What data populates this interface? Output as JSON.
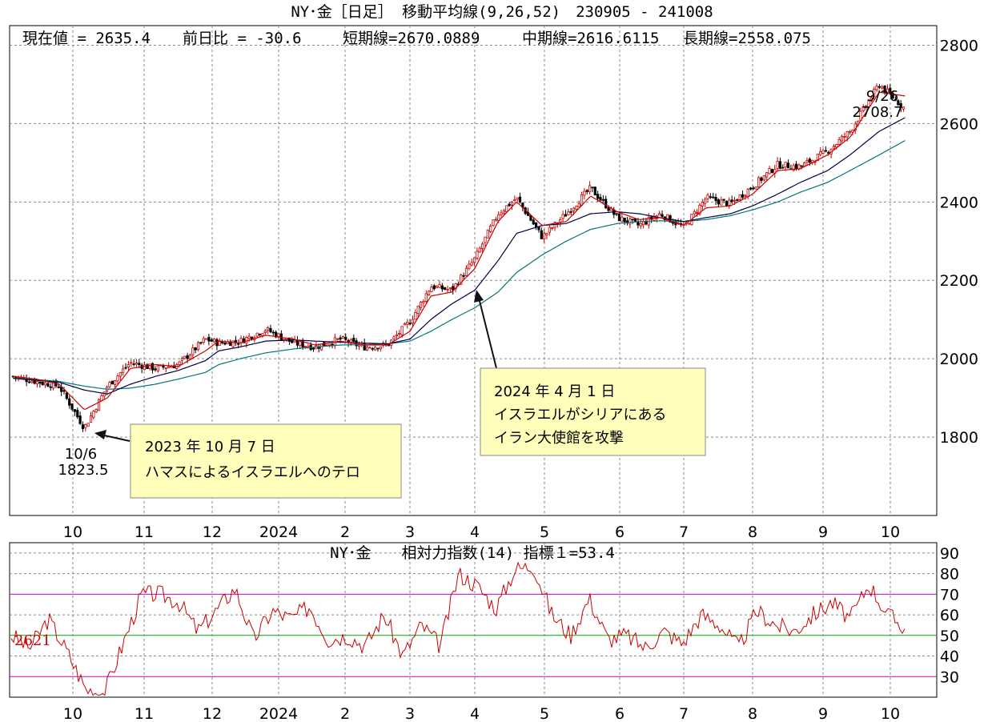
{
  "title": "NY･金［日足］ 移動平均線(9,26,52)　230905 - 241008",
  "info": {
    "current": "現在値 = 2635.4",
    "change": "前日比 = -30.6",
    "short_ma": "短期線=2670.0889",
    "mid_ma": "中期線=2616.6115",
    "long_ma": "長期線=2558.075"
  },
  "rsi_title": "NY･金　　相対力指数(14) 指標１=53.4",
  "rsi_left_label": "2621",
  "annotations": {
    "low_date": "10/6",
    "low_value": "1823.5",
    "high_date": "9/26",
    "high_value": "2708.7",
    "box1_line1": "2023 年 10 月 7 日",
    "box1_line2": "ハマスによるイスラエルへのテロ",
    "box2_line1": "2024 年 4 月 1 日",
    "box2_line2": "イスラエルがシリアにある",
    "box2_line3": "イラン大使館を攻撃"
  },
  "colors": {
    "short_ma": "#cc0000",
    "mid_ma": "#000044",
    "long_ma": "#007777",
    "rsi_line": "#cc0000",
    "rsi_70_30": "#cc00cc",
    "rsi_50": "#00aa00",
    "annotation_box": "#ffffbb"
  },
  "chart_data": [
    {
      "type": "candlestick",
      "title": "NY･金［日足］ 移動平均線(9,26,52)",
      "x_tick_labels": [
        "10",
        "11",
        "12",
        "2024",
        "2",
        "3",
        "4",
        "5",
        "6",
        "7",
        "8",
        "9",
        "10"
      ],
      "y_ticks": [
        1800,
        2000,
        2200,
        2400,
        2600,
        2800
      ],
      "ylim": [
        1600,
        2850
      ],
      "grid": true,
      "series": [
        {
          "name": "短期線",
          "period": 9,
          "last": 2670.0889
        },
        {
          "name": "中期線",
          "period": 26,
          "last": 2616.6115
        },
        {
          "name": "長期線",
          "period": 52,
          "last": 2558.075
        }
      ],
      "x": [
        "2023-09-05",
        "2023-09-15",
        "2023-09-25",
        "2023-10-06",
        "2023-10-16",
        "2023-10-26",
        "2023-11-06",
        "2023-11-16",
        "2023-11-28",
        "2023-12-04",
        "2023-12-14",
        "2023-12-26",
        "2024-01-08",
        "2024-01-18",
        "2024-01-30",
        "2024-02-09",
        "2024-02-20",
        "2024-03-01",
        "2024-03-11",
        "2024-03-21",
        "2024-04-01",
        "2024-04-11",
        "2024-04-19",
        "2024-04-30",
        "2024-05-10",
        "2024-05-20",
        "2024-05-31",
        "2024-06-10",
        "2024-06-20",
        "2024-07-01",
        "2024-07-11",
        "2024-07-22",
        "2024-08-01",
        "2024-08-12",
        "2024-08-22",
        "2024-09-03",
        "2024-09-13",
        "2024-09-26",
        "2024-10-08"
      ],
      "close": [
        1955,
        1942,
        1930,
        1823.5,
        1930,
        1990,
        1975,
        1985,
        2050,
        2040,
        2045,
        2075,
        2040,
        2030,
        2050,
        2030,
        2035,
        2095,
        2185,
        2175,
        2255,
        2370,
        2410,
        2310,
        2370,
        2435,
        2360,
        2340,
        2370,
        2335,
        2410,
        2395,
        2440,
        2495,
        2490,
        2530,
        2580,
        2700,
        2635.4
      ],
      "ma_short": [
        1955,
        1948,
        1935,
        1870,
        1900,
        1975,
        1985,
        1980,
        2020,
        2045,
        2040,
        2060,
        2050,
        2035,
        2045,
        2035,
        2035,
        2070,
        2160,
        2170,
        2230,
        2350,
        2400,
        2340,
        2350,
        2415,
        2375,
        2355,
        2360,
        2340,
        2385,
        2390,
        2420,
        2480,
        2485,
        2520,
        2565,
        2680,
        2670.09
      ],
      "ma_mid": [
        1950,
        1945,
        1940,
        1920,
        1910,
        1935,
        1955,
        1970,
        1995,
        2020,
        2030,
        2045,
        2048,
        2045,
        2042,
        2040,
        2038,
        2050,
        2100,
        2140,
        2175,
        2250,
        2320,
        2340,
        2345,
        2370,
        2375,
        2370,
        2360,
        2350,
        2360,
        2370,
        2390,
        2420,
        2450,
        2480,
        2520,
        2580,
        2616.61
      ],
      "ma_long": [
        1950,
        1947,
        1942,
        1930,
        1922,
        1925,
        1935,
        1948,
        1965,
        1985,
        2000,
        2015,
        2025,
        2030,
        2035,
        2036,
        2038,
        2045,
        2070,
        2100,
        2130,
        2170,
        2220,
        2265,
        2300,
        2330,
        2345,
        2350,
        2352,
        2350,
        2355,
        2365,
        2380,
        2400,
        2425,
        2450,
        2480,
        2520,
        2558.08
      ]
    },
    {
      "type": "line",
      "title": "相対力指数(14)",
      "y_ticks": [
        30,
        40,
        50,
        60,
        70,
        80,
        90
      ],
      "ylim": [
        20,
        95
      ],
      "reference_lines": [
        30,
        50,
        70
      ],
      "grid": true,
      "x_tick_labels": [
        "10",
        "11",
        "12",
        "2024",
        "2",
        "3",
        "4",
        "5",
        "6",
        "7",
        "8",
        "9",
        "10"
      ],
      "values": [
        50,
        44,
        58,
        42,
        24,
        22,
        46,
        70,
        70,
        66,
        52,
        62,
        73,
        48,
        62,
        58,
        64,
        48,
        50,
        45,
        60,
        40,
        55,
        45,
        80,
        74,
        63,
        82,
        84,
        60,
        50,
        68,
        48,
        50,
        44,
        52,
        46,
        60,
        55,
        44,
        62,
        55,
        52,
        60,
        66,
        58,
        75,
        60,
        53.4
      ]
    }
  ]
}
